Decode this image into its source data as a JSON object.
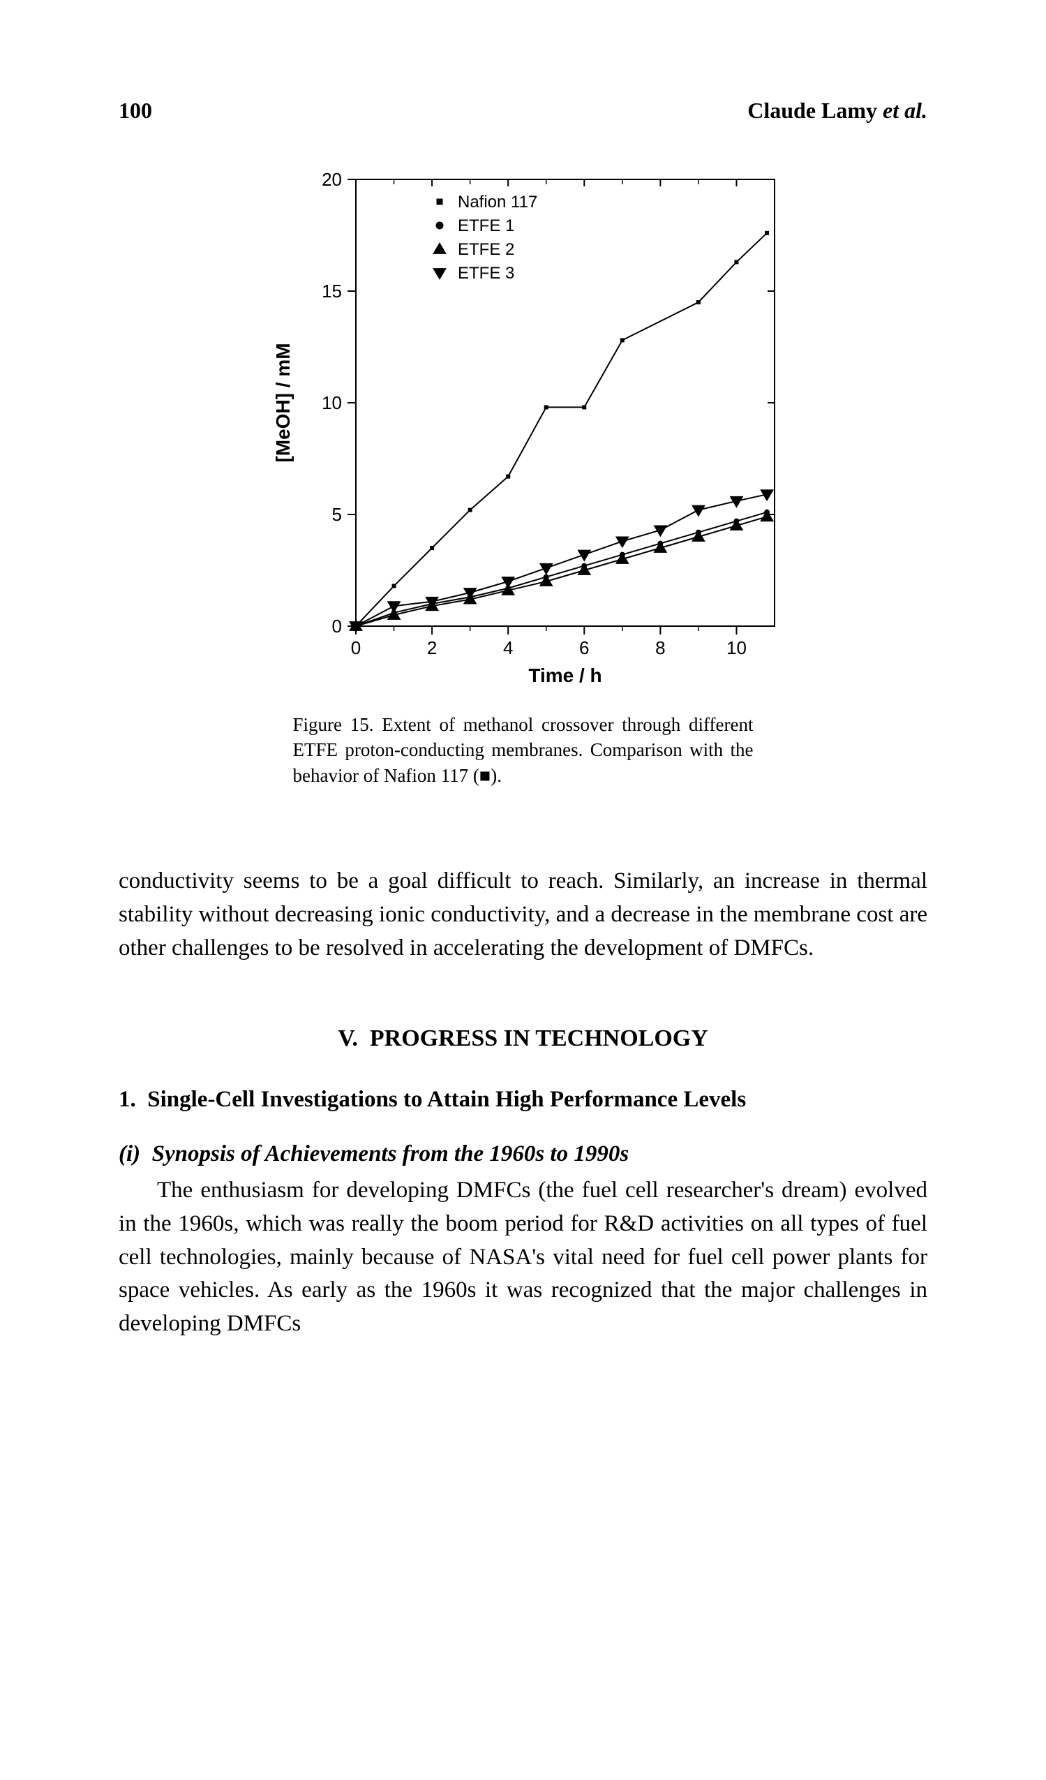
{
  "header": {
    "page_number": "100",
    "running_head_author": "Claude Lamy",
    "running_head_suffix": "et al."
  },
  "figure": {
    "type": "line",
    "x_label": "Time / h",
    "y_label": "[MeOH] / mM",
    "xlim": [
      0,
      11
    ],
    "ylim": [
      0,
      20
    ],
    "xticks": [
      0,
      2,
      4,
      6,
      8,
      10
    ],
    "yticks": [
      0,
      5,
      10,
      15,
      20
    ],
    "minor_xticks": [
      1,
      3,
      5,
      7,
      9
    ],
    "background_color": "#ffffff",
    "axis_color": "#000000",
    "axis_line_width": 2,
    "tick_fontsize": 26,
    "label_fontsize": 28,
    "legend": {
      "x": 2.2,
      "y_top": 19.0,
      "fontsize": 24,
      "items": [
        {
          "marker": "square-dot",
          "label": "Nafion 117"
        },
        {
          "marker": "circle-dot",
          "label": "ETFE 1"
        },
        {
          "marker": "triangle-up",
          "label": "ETFE 2"
        },
        {
          "marker": "triangle-down",
          "label": "ETFE 3"
        }
      ]
    },
    "series": [
      {
        "name": "Nafion 117",
        "marker": "square-dot",
        "marker_size": 6,
        "line_width": 2,
        "color": "#000000",
        "data": [
          [
            0,
            0
          ],
          [
            1,
            1.8
          ],
          [
            2,
            3.5
          ],
          [
            3,
            5.2
          ],
          [
            4,
            6.7
          ],
          [
            5,
            9.8
          ],
          [
            6,
            9.8
          ],
          [
            7,
            12.8
          ],
          [
            9,
            14.5
          ],
          [
            10,
            16.3
          ],
          [
            10.8,
            17.6
          ]
        ]
      },
      {
        "name": "ETFE 3",
        "marker": "triangle-down",
        "marker_size": 9,
        "line_width": 2,
        "color": "#000000",
        "data": [
          [
            0,
            0
          ],
          [
            1,
            0.9
          ],
          [
            2,
            1.1
          ],
          [
            3,
            1.5
          ],
          [
            4,
            2.0
          ],
          [
            5,
            2.6
          ],
          [
            6,
            3.2
          ],
          [
            7,
            3.8
          ],
          [
            8,
            4.3
          ],
          [
            9,
            5.2
          ],
          [
            10,
            5.6
          ],
          [
            10.8,
            5.9
          ]
        ]
      },
      {
        "name": "ETFE 1",
        "marker": "circle-dot",
        "marker_size": 6,
        "line_width": 2,
        "color": "#000000",
        "data": [
          [
            0,
            0
          ],
          [
            1,
            0.6
          ],
          [
            2,
            1.0
          ],
          [
            3,
            1.3
          ],
          [
            4,
            1.7
          ],
          [
            5,
            2.2
          ],
          [
            6,
            2.7
          ],
          [
            7,
            3.2
          ],
          [
            8,
            3.7
          ],
          [
            9,
            4.2
          ],
          [
            10,
            4.7
          ],
          [
            10.8,
            5.1
          ]
        ]
      },
      {
        "name": "ETFE 2",
        "marker": "triangle-up",
        "marker_size": 9,
        "line_width": 2,
        "color": "#000000",
        "data": [
          [
            0,
            0
          ],
          [
            1,
            0.5
          ],
          [
            2,
            0.9
          ],
          [
            3,
            1.2
          ],
          [
            4,
            1.6
          ],
          [
            5,
            2.0
          ],
          [
            6,
            2.5
          ],
          [
            7,
            3.0
          ],
          [
            8,
            3.5
          ],
          [
            9,
            4.0
          ],
          [
            10,
            4.5
          ],
          [
            10.8,
            4.9
          ]
        ]
      }
    ],
    "caption_prefix": "Figure 15.",
    "caption_body": "Extent of methanol crossover through different ETFE proton-conducting membranes. Comparison with the behavior of Nafion 117 (■)."
  },
  "paragraph_cont": "conductivity seems to be a goal difficult to reach. Similarly, an increase in thermal stability without decreasing ionic conductivity, and a decrease in the membrane cost are other challenges to be resolved in accelerating the development of DMFCs.",
  "section": {
    "number": "V.",
    "title": "PROGRESS IN TECHNOLOGY"
  },
  "subsection": {
    "number": "1.",
    "title": "Single-Cell Investigations to Attain High Performance Levels"
  },
  "subsub": {
    "label": "(i)",
    "title": "Synopsis of Achievements from the 1960s to 1990s"
  },
  "paragraph_body": "The enthusiasm for developing DMFCs (the fuel cell researcher's dream) evolved in the 1960s, which was really the boom period for R&D activities on all types of fuel cell technologies, mainly because of NASA's vital need for fuel cell power plants for space vehicles. As early as the 1960s it was recognized that the major challenges in developing DMFCs"
}
